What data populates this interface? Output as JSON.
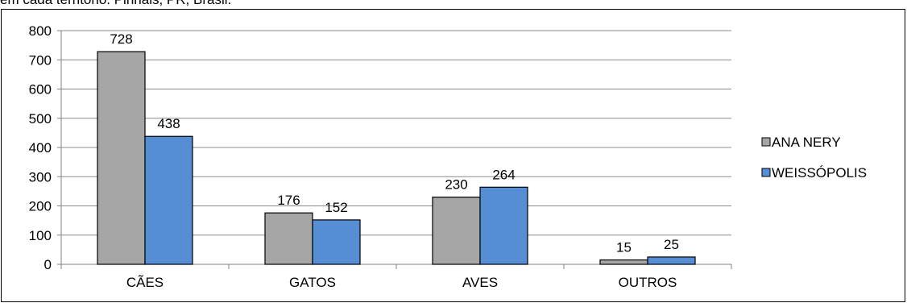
{
  "caption": "em cada território. Pinhais, PR, Brasil.",
  "chart_data": {
    "type": "bar",
    "categories": [
      "CÃES",
      "GATOS",
      "AVES",
      "OUTROS"
    ],
    "series": [
      {
        "name": "ANA NERY",
        "values": [
          728,
          176,
          230,
          15
        ],
        "color": "#a6a6a6"
      },
      {
        "name": "WEISSÓPOLIS",
        "values": [
          438,
          152,
          264,
          25
        ],
        "color": "#558ed5"
      }
    ],
    "ylim": [
      0,
      800
    ],
    "yticks": [
      0,
      100,
      200,
      300,
      400,
      500,
      600,
      700,
      800
    ],
    "grid": true,
    "legend": "right",
    "data_labels": true
  }
}
